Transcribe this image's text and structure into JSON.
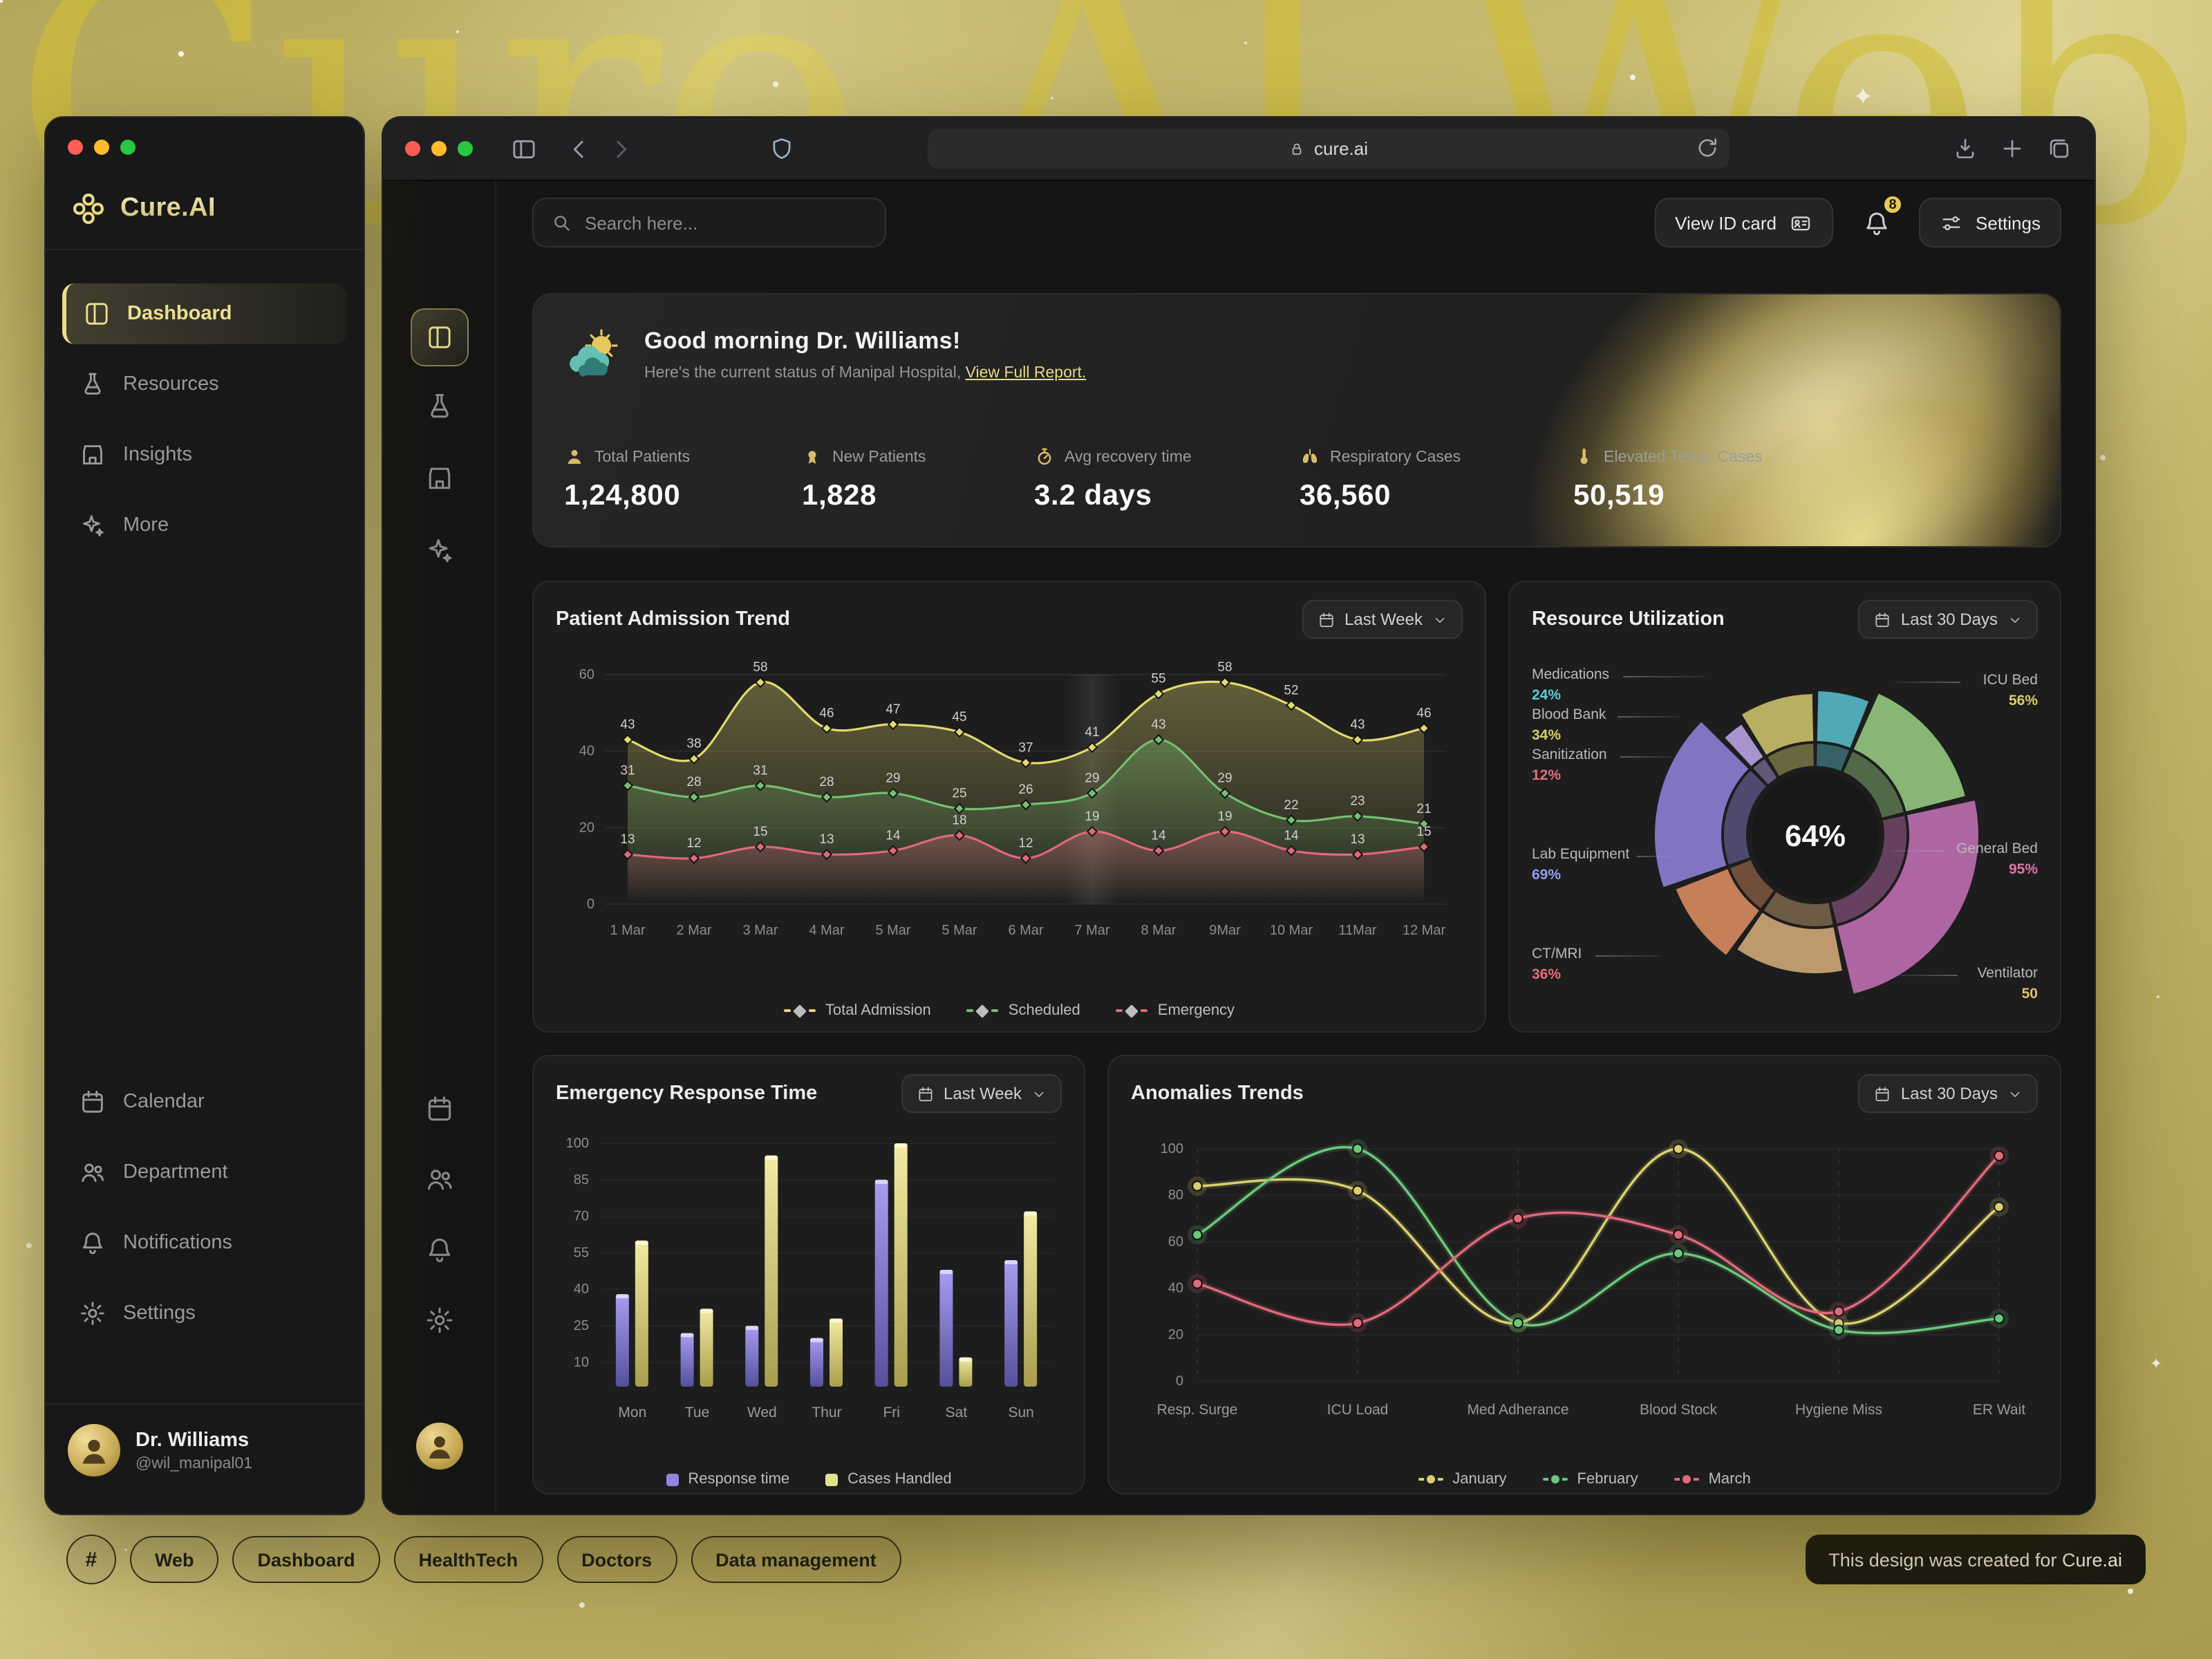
{
  "background": {
    "watermark": "Cure AI Web"
  },
  "footer": {
    "hash": "#",
    "tags": [
      "Web",
      "Dashboard",
      "HealthTech",
      "Doctors",
      "Data management"
    ],
    "note": "This design was created for Cure.ai"
  },
  "sidebar": {
    "brand": "Cure.AI",
    "items": [
      {
        "label": "Dashboard"
      },
      {
        "label": "Resources"
      },
      {
        "label": "Insights"
      },
      {
        "label": "More"
      }
    ],
    "bottom_items": [
      {
        "label": "Calendar"
      },
      {
        "label": "Department"
      },
      {
        "label": "Notifications"
      },
      {
        "label": "Settings"
      }
    ],
    "user": {
      "name": "Dr. Williams",
      "handle": "@wil_manipal01"
    }
  },
  "browser": {
    "url": "cure.ai"
  },
  "header": {
    "search_placeholder": "Search here...",
    "view_id_card": "View ID card",
    "notifications_count": "8",
    "settings_label": "Settings"
  },
  "welcome": {
    "greeting": "Good morning Dr. Williams!",
    "status": "Here's the current status of Manipal Hospital,",
    "link": "View Full Report."
  },
  "stats": [
    {
      "label": "Total Patients",
      "value": "1,24,800"
    },
    {
      "label": "New Patients",
      "value": "1,828"
    },
    {
      "label": "Avg recovery time",
      "value": "3.2 days"
    },
    {
      "label": "Respiratory Cases",
      "value": "36,560"
    },
    {
      "label": "Elevated Temp. Cases",
      "value": "50,519"
    }
  ],
  "chart_data": [
    {
      "type": "area",
      "title": "Patient Admission Trend",
      "range_label": "Last Week",
      "x": [
        "1 Mar",
        "2 Mar",
        "3 Mar",
        "4 Mar",
        "5 Mar",
        "5 Mar",
        "6 Mar",
        "7 Mar",
        "8 Mar",
        "9Mar",
        "10 Mar",
        "11Mar",
        "12 Mar"
      ],
      "ylim": [
        0,
        60
      ],
      "yticks": [
        0,
        20,
        40,
        60
      ],
      "series": [
        {
          "name": "Total Admission",
          "color": "#e3d96f",
          "values": [
            43,
            38,
            58,
            46,
            47,
            45,
            37,
            41,
            55,
            58,
            52,
            43,
            46
          ]
        },
        {
          "name": "Scheduled",
          "color": "#74c072",
          "values": [
            31,
            28,
            31,
            28,
            29,
            25,
            26,
            29,
            43,
            29,
            22,
            23,
            21
          ]
        },
        {
          "name": "Emergency",
          "color": "#e0697a",
          "values": [
            13,
            12,
            15,
            13,
            14,
            18,
            12,
            19,
            14,
            19,
            14,
            13,
            15
          ]
        }
      ]
    },
    {
      "type": "donut",
      "title": "Resource Utilization",
      "range_label": "Last 30 Days",
      "center_label": "64%",
      "segments": [
        {
          "name": "Medications",
          "value": 24,
          "pct": "24%",
          "color": "#58b9c8",
          "pct_color": "#5ecfd6"
        },
        {
          "name": "ICU Bed",
          "value": 56,
          "pct": "56%",
          "color": "#93c87f",
          "pct_color": "#d8cf6d"
        },
        {
          "name": "General Bed",
          "value": 95,
          "pct": "95%",
          "color": "#bf6fb2",
          "pct_color": "#e075a8"
        },
        {
          "name": "Ventilator",
          "value": 50,
          "pct": "50",
          "color": "#cfa878",
          "pct_color": "#e3c16e"
        },
        {
          "name": "CT/MRI",
          "value": 36,
          "pct": "36%",
          "color": "#d88b60",
          "pct_color": "#e0707a"
        },
        {
          "name": "Lab Equipment",
          "value": 69,
          "pct": "69%",
          "color": "#8d80d6",
          "pct_color": "#8f9fe8"
        },
        {
          "name": "Sanitization",
          "value": 12,
          "pct": "12%",
          "color": "#b9a1e0",
          "pct_color": "#e0707a"
        },
        {
          "name": "Blood Bank",
          "value": 34,
          "pct": "34%",
          "color": "#c9c06a",
          "pct_color": "#d8cf6d"
        }
      ]
    },
    {
      "type": "bar",
      "title": "Emergency Response Time",
      "range_label": "Last Week",
      "categories": [
        "Mon",
        "Tue",
        "Wed",
        "Thur",
        "Fri",
        "Sat",
        "Sun"
      ],
      "ylim": [
        0,
        100
      ],
      "yticks": [
        10,
        25,
        40,
        55,
        70,
        85,
        100
      ],
      "series": [
        {
          "name": "Response time",
          "color": "#8f86e0",
          "values": [
            38,
            22,
            25,
            20,
            85,
            48,
            52
          ]
        },
        {
          "name": "Cases Handled",
          "color": "#e6df8e",
          "values": [
            60,
            32,
            95,
            28,
            100,
            12,
            72
          ]
        }
      ]
    },
    {
      "type": "line",
      "title": "Anomalies Trends",
      "range_label": "Last 30 Days",
      "categories": [
        "Resp. Surge",
        "ICU Load",
        "Med Adherance",
        "Blood Stock",
        "Hygiene Miss",
        "ER Wait"
      ],
      "ylim": [
        0,
        100
      ],
      "yticks": [
        0,
        20,
        40,
        60,
        80,
        100
      ],
      "series": [
        {
          "name": "January",
          "color": "#d9cf6e",
          "values": [
            84,
            82,
            25,
            100,
            25,
            75
          ]
        },
        {
          "name": "February",
          "color": "#6cc77b",
          "values": [
            63,
            100,
            25,
            55,
            22,
            27
          ]
        },
        {
          "name": "March",
          "color": "#e0697a",
          "values": [
            42,
            25,
            70,
            63,
            30,
            97
          ]
        }
      ]
    }
  ]
}
